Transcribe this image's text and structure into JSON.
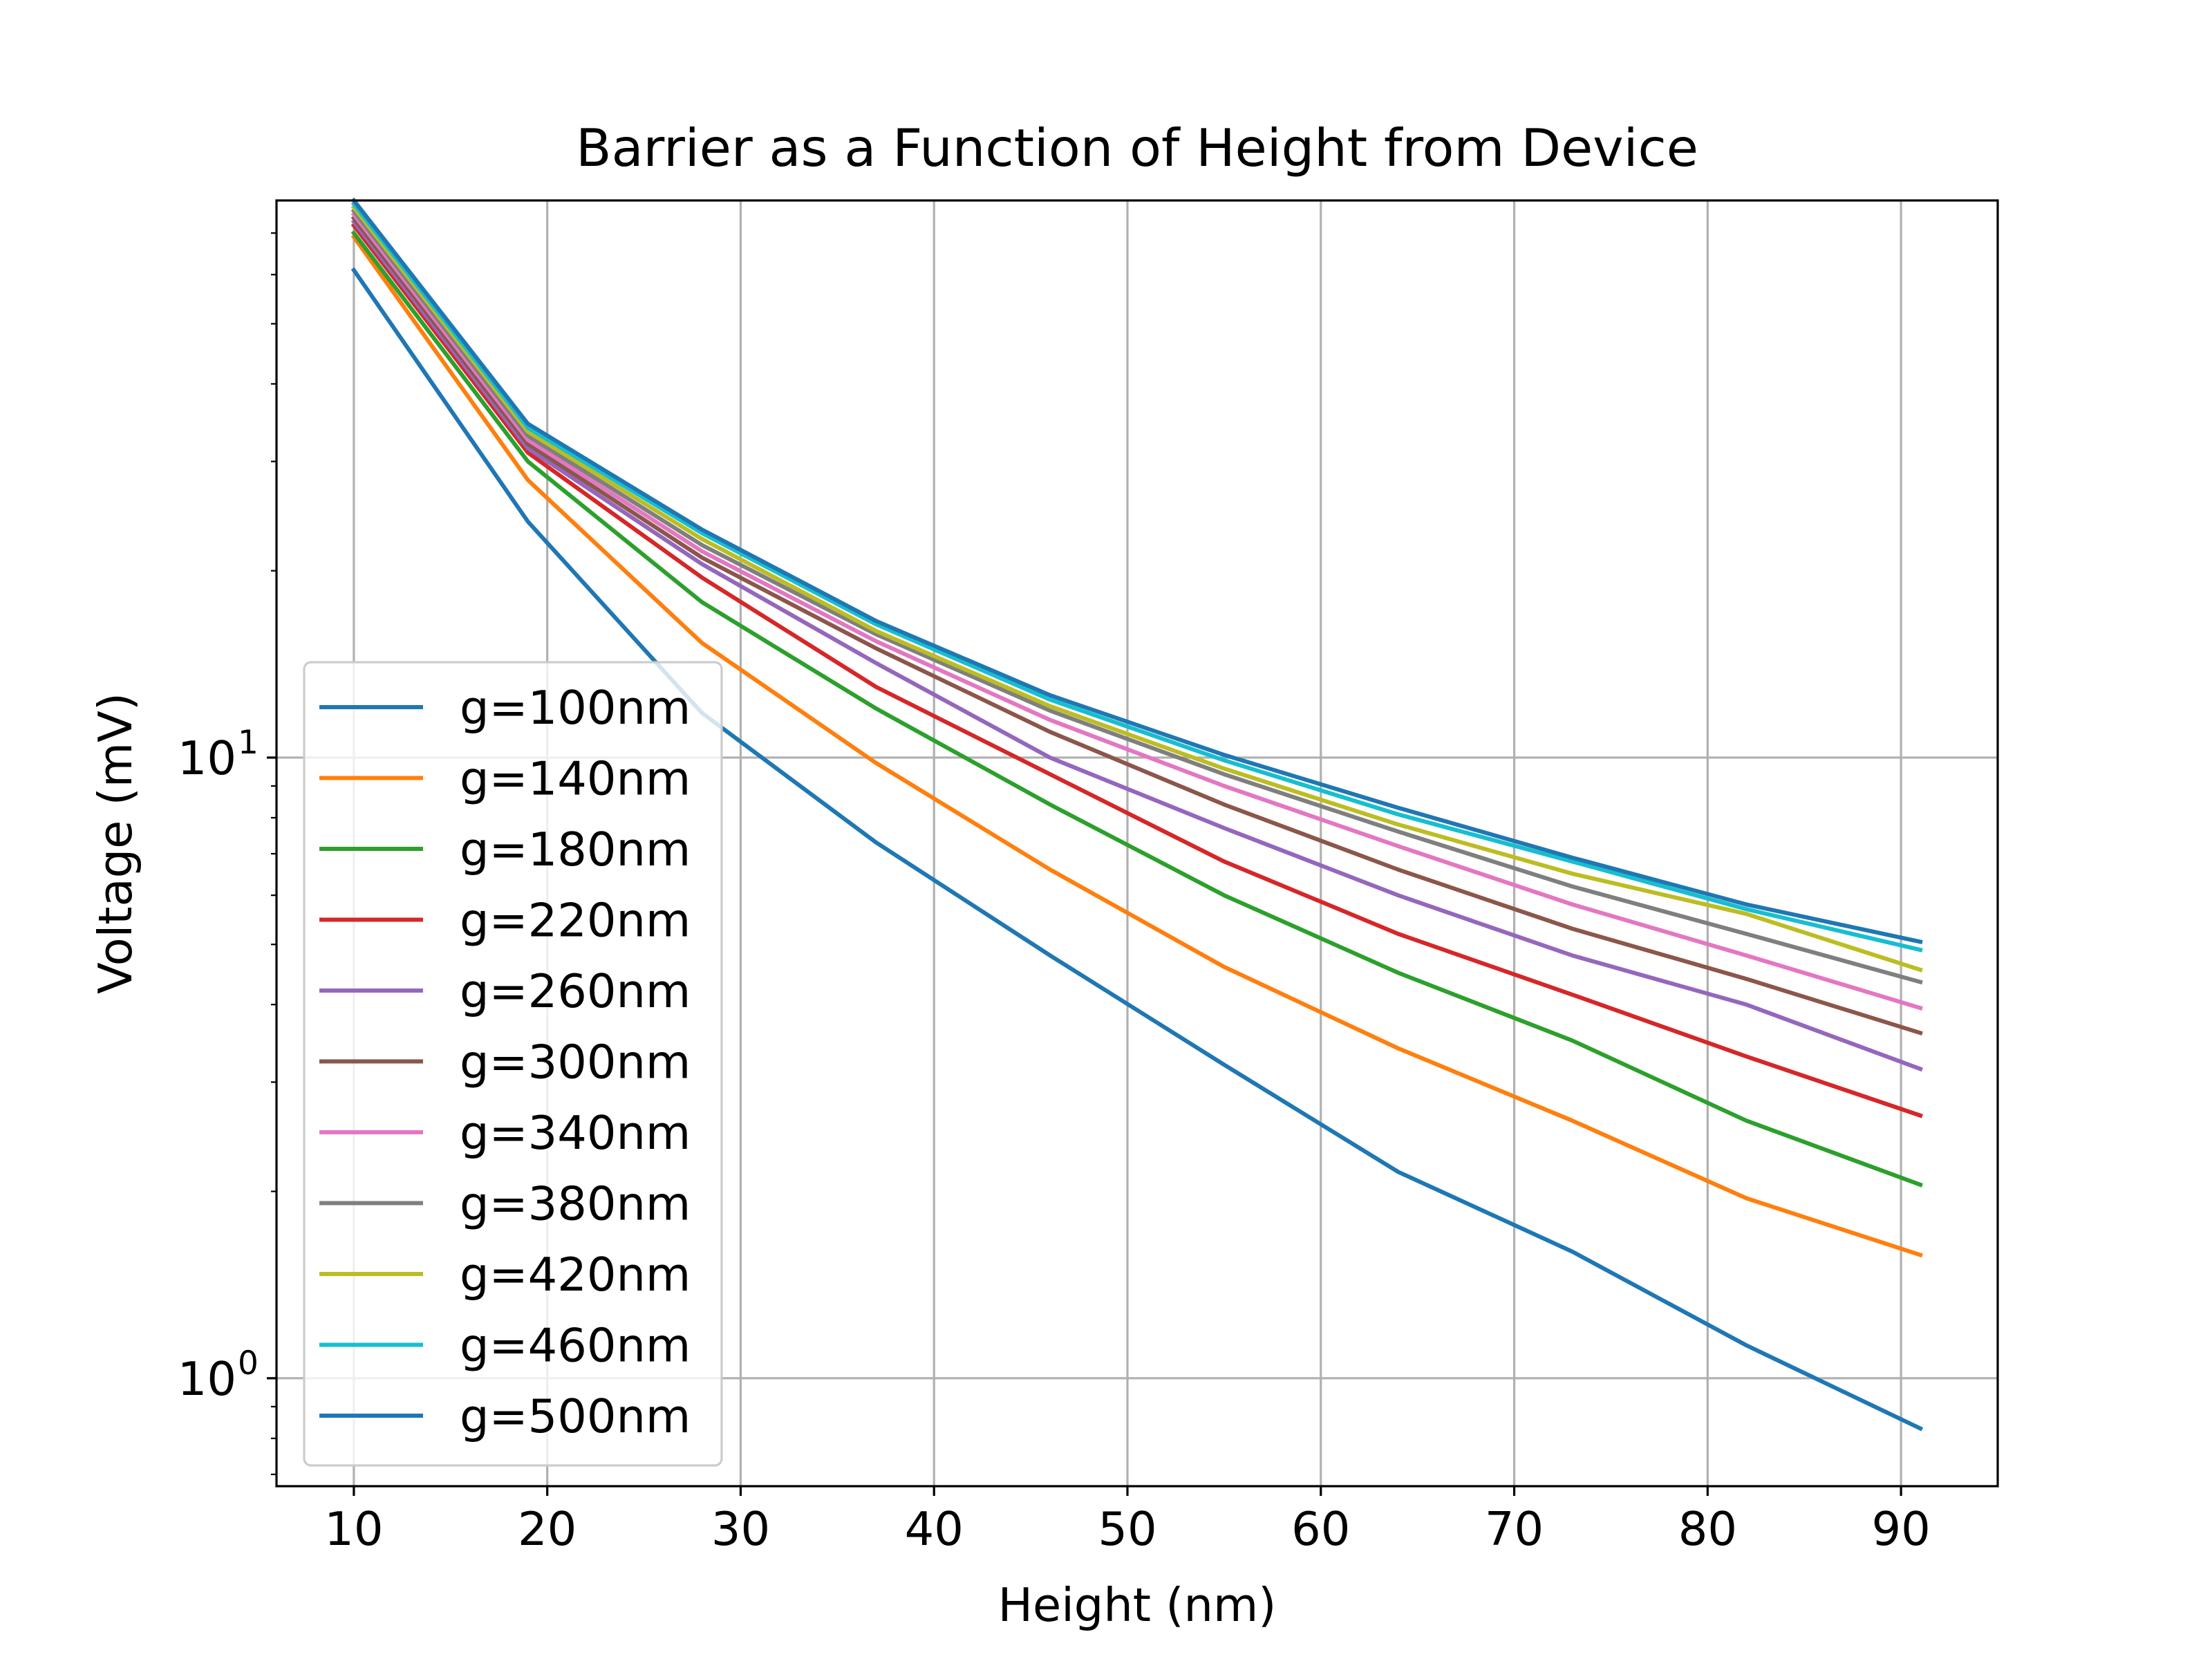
{
  "chart_data": {
    "type": "line",
    "title": "Barrier as a Function of Height from Device",
    "xlabel": "Height (nm)",
    "ylabel": "Voltage (mV)",
    "xlim": [
      6,
      95
    ],
    "ylim": [
      0.67,
      79
    ],
    "y_scale": "log",
    "grid": true,
    "legend_position": "lower-left",
    "x_ticks": [
      10,
      20,
      30,
      40,
      50,
      60,
      70,
      80,
      90
    ],
    "y_ticks": [
      {
        "value": 1,
        "base": "10",
        "exponent": "0"
      },
      {
        "value": 10,
        "base": "10",
        "exponent": "1"
      }
    ],
    "x": [
      10,
      19,
      28,
      37,
      46,
      55,
      64,
      73,
      82,
      91
    ],
    "series": [
      {
        "name": "g=100nm",
        "color": "#1f77b4",
        "values": [
          61,
          24,
          11.8,
          7.3,
          4.8,
          3.2,
          2.15,
          1.6,
          1.13,
          0.83
        ]
      },
      {
        "name": "g=140nm",
        "color": "#ff7f0e",
        "values": [
          69,
          28,
          15.3,
          9.8,
          6.6,
          4.6,
          3.4,
          2.6,
          1.95,
          1.58
        ]
      },
      {
        "name": "g=180nm",
        "color": "#2ca02c",
        "values": [
          70,
          30,
          17.8,
          12,
          8.4,
          6,
          4.5,
          3.5,
          2.6,
          2.05
        ]
      },
      {
        "name": "g=220nm",
        "color": "#d62728",
        "values": [
          72,
          31,
          19.5,
          13,
          9.4,
          6.8,
          5.2,
          4.15,
          3.3,
          2.65
        ]
      },
      {
        "name": "g=260nm",
        "color": "#9467bd",
        "values": [
          73,
          31.5,
          20.5,
          14.2,
          10,
          7.7,
          6,
          4.8,
          4,
          3.15
        ]
      },
      {
        "name": "g=300nm",
        "color": "#8c564b",
        "values": [
          74,
          32,
          21,
          15,
          11,
          8.4,
          6.6,
          5.3,
          4.4,
          3.6
        ]
      },
      {
        "name": "g=340nm",
        "color": "#e377c2",
        "values": [
          75,
          32.5,
          21.5,
          15.4,
          11.5,
          9,
          7.2,
          5.8,
          4.8,
          3.95
        ]
      },
      {
        "name": "g=380nm",
        "color": "#7f7f7f",
        "values": [
          76,
          33,
          22,
          15.8,
          11.9,
          9.4,
          7.6,
          6.2,
          5.2,
          4.35
        ]
      },
      {
        "name": "g=420nm",
        "color": "#bcbd22",
        "values": [
          77,
          33.5,
          22.5,
          16,
          12.1,
          9.6,
          7.8,
          6.5,
          5.6,
          4.55
        ]
      },
      {
        "name": "g=460nm",
        "color": "#17becf",
        "values": [
          78,
          34,
          23,
          16.4,
          12.4,
          9.9,
          8.1,
          6.8,
          5.7,
          4.9
        ]
      },
      {
        "name": "g=500nm",
        "color": "#1f77b4",
        "values": [
          79,
          34.5,
          23.3,
          16.6,
          12.6,
          10.1,
          8.3,
          6.9,
          5.8,
          5.05
        ]
      }
    ]
  }
}
